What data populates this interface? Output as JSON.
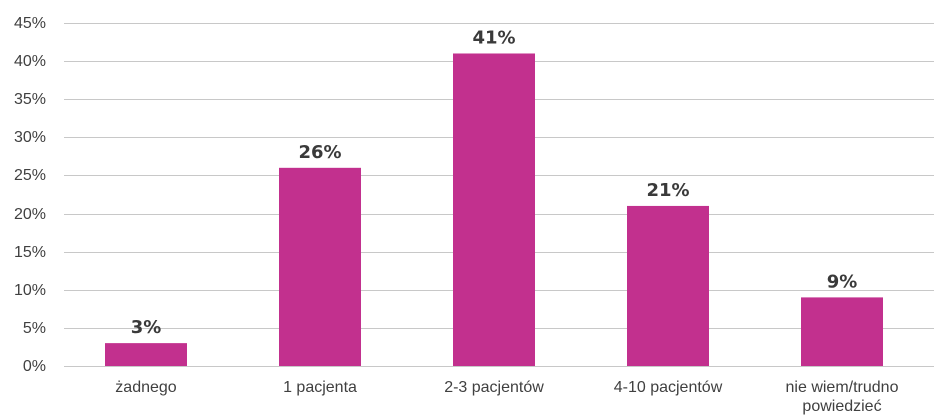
{
  "chart_data": {
    "type": "bar",
    "title": "",
    "xlabel": "",
    "ylabel": "",
    "categories": [
      "żadnego",
      "1 pacjenta",
      "2-3 pacjentów",
      "4-10 pacjentów",
      "nie wiem/trudno powiedzieć"
    ],
    "category_label_lines": [
      [
        "żadnego"
      ],
      [
        "1 pacjenta"
      ],
      [
        "2-3 pacjentów"
      ],
      [
        "4-10 pacjentów"
      ],
      [
        "nie wiem/trudno",
        "powiedzieć"
      ]
    ],
    "values": [
      3,
      26,
      41,
      21,
      9
    ],
    "data_labels": [
      "3%",
      "26%",
      "41%",
      "21%",
      "9%"
    ],
    "ylim": [
      0,
      45
    ],
    "y_ticks": [
      0,
      5,
      10,
      15,
      20,
      25,
      30,
      35,
      40,
      45
    ],
    "y_tick_labels": [
      "0%",
      "5%",
      "10%",
      "15%",
      "20%",
      "25%",
      "30%",
      "35%",
      "40%",
      "45%"
    ],
    "grid": true,
    "legend": "none",
    "bar_color": "#c2308e"
  }
}
